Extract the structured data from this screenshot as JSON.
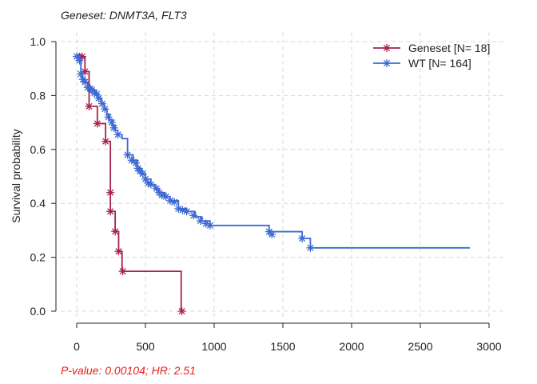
{
  "chart_data": {
    "type": "line",
    "subtype": "kaplan-meier",
    "title": "Geneset: DNMT3A, FLT3",
    "xlabel": "",
    "ylabel": "Survival probability",
    "xlim": [
      -60,
      3030
    ],
    "ylim": [
      0,
      1.0
    ],
    "x_ticks": [
      0,
      500,
      1000,
      1500,
      2000,
      2500,
      3000
    ],
    "y_ticks": [
      0.0,
      0.2,
      0.4,
      0.6,
      0.8,
      1.0
    ],
    "x_tick_labels": [
      "0",
      "500",
      "1000",
      "1500",
      "2000",
      "2500",
      "3000"
    ],
    "y_tick_labels": [
      "0.0",
      "0.2",
      "0.4",
      "0.6",
      "0.8",
      "1.0"
    ],
    "grid": true,
    "legend_position": "top-right",
    "annotation": "P-value: 0.00104; HR: 2.51",
    "series": [
      {
        "name": "Geneset [N= 18]",
        "color": "#a52251",
        "steps": [
          [
            0,
            0.944
          ],
          [
            60,
            0.889
          ],
          [
            90,
            0.76
          ],
          [
            150,
            0.696
          ],
          [
            210,
            0.63
          ],
          [
            245,
            0.44
          ],
          [
            245,
            0.37
          ],
          [
            280,
            0.296
          ],
          [
            305,
            0.222
          ],
          [
            330,
            0.148
          ],
          [
            760,
            0.0
          ]
        ],
        "end_x": 760,
        "censor": [
          [
            20,
            0.944
          ],
          [
            40,
            0.944
          ],
          [
            60,
            0.889
          ],
          [
            90,
            0.76
          ],
          [
            150,
            0.696
          ],
          [
            210,
            0.63
          ],
          [
            245,
            0.44
          ],
          [
            245,
            0.37
          ],
          [
            280,
            0.296
          ],
          [
            305,
            0.222
          ],
          [
            335,
            0.148
          ],
          [
            765,
            0.0
          ]
        ]
      },
      {
        "name": "WT [N= 164]",
        "color": "#3b68d1",
        "steps": [
          [
            0,
            0.945
          ],
          [
            20,
            0.93
          ],
          [
            30,
            0.88
          ],
          [
            40,
            0.86
          ],
          [
            60,
            0.85
          ],
          [
            80,
            0.83
          ],
          [
            110,
            0.82
          ],
          [
            140,
            0.805
          ],
          [
            160,
            0.79
          ],
          [
            180,
            0.77
          ],
          [
            200,
            0.75
          ],
          [
            220,
            0.73
          ],
          [
            240,
            0.71
          ],
          [
            260,
            0.69
          ],
          [
            280,
            0.67
          ],
          [
            300,
            0.655
          ],
          [
            330,
            0.64
          ],
          [
            370,
            0.58
          ],
          [
            410,
            0.56
          ],
          [
            440,
            0.53
          ],
          [
            470,
            0.51
          ],
          [
            500,
            0.49
          ],
          [
            540,
            0.47
          ],
          [
            570,
            0.455
          ],
          [
            600,
            0.44
          ],
          [
            640,
            0.425
          ],
          [
            680,
            0.41
          ],
          [
            740,
            0.38
          ],
          [
            800,
            0.37
          ],
          [
            860,
            0.35
          ],
          [
            910,
            0.335
          ],
          [
            970,
            0.318
          ],
          [
            1400,
            0.295
          ],
          [
            1640,
            0.27
          ],
          [
            1700,
            0.235
          ]
        ],
        "end_x": 2860,
        "censor": [
          [
            0,
            0.945
          ],
          [
            20,
            0.93
          ],
          [
            30,
            0.88
          ],
          [
            45,
            0.86
          ],
          [
            60,
            0.85
          ],
          [
            80,
            0.83
          ],
          [
            100,
            0.825
          ],
          [
            110,
            0.82
          ],
          [
            130,
            0.81
          ],
          [
            145,
            0.805
          ],
          [
            160,
            0.79
          ],
          [
            185,
            0.77
          ],
          [
            205,
            0.75
          ],
          [
            230,
            0.72
          ],
          [
            255,
            0.7
          ],
          [
            270,
            0.68
          ],
          [
            300,
            0.655
          ],
          [
            370,
            0.58
          ],
          [
            400,
            0.56
          ],
          [
            430,
            0.55
          ],
          [
            445,
            0.53
          ],
          [
            460,
            0.52
          ],
          [
            480,
            0.51
          ],
          [
            500,
            0.49
          ],
          [
            520,
            0.475
          ],
          [
            540,
            0.47
          ],
          [
            580,
            0.455
          ],
          [
            600,
            0.44
          ],
          [
            620,
            0.43
          ],
          [
            650,
            0.425
          ],
          [
            680,
            0.41
          ],
          [
            710,
            0.405
          ],
          [
            740,
            0.38
          ],
          [
            770,
            0.375
          ],
          [
            800,
            0.37
          ],
          [
            850,
            0.355
          ],
          [
            900,
            0.335
          ],
          [
            940,
            0.325
          ],
          [
            970,
            0.318
          ],
          [
            1400,
            0.295
          ],
          [
            1420,
            0.285
          ],
          [
            1640,
            0.27
          ],
          [
            1700,
            0.235
          ]
        ]
      }
    ]
  }
}
